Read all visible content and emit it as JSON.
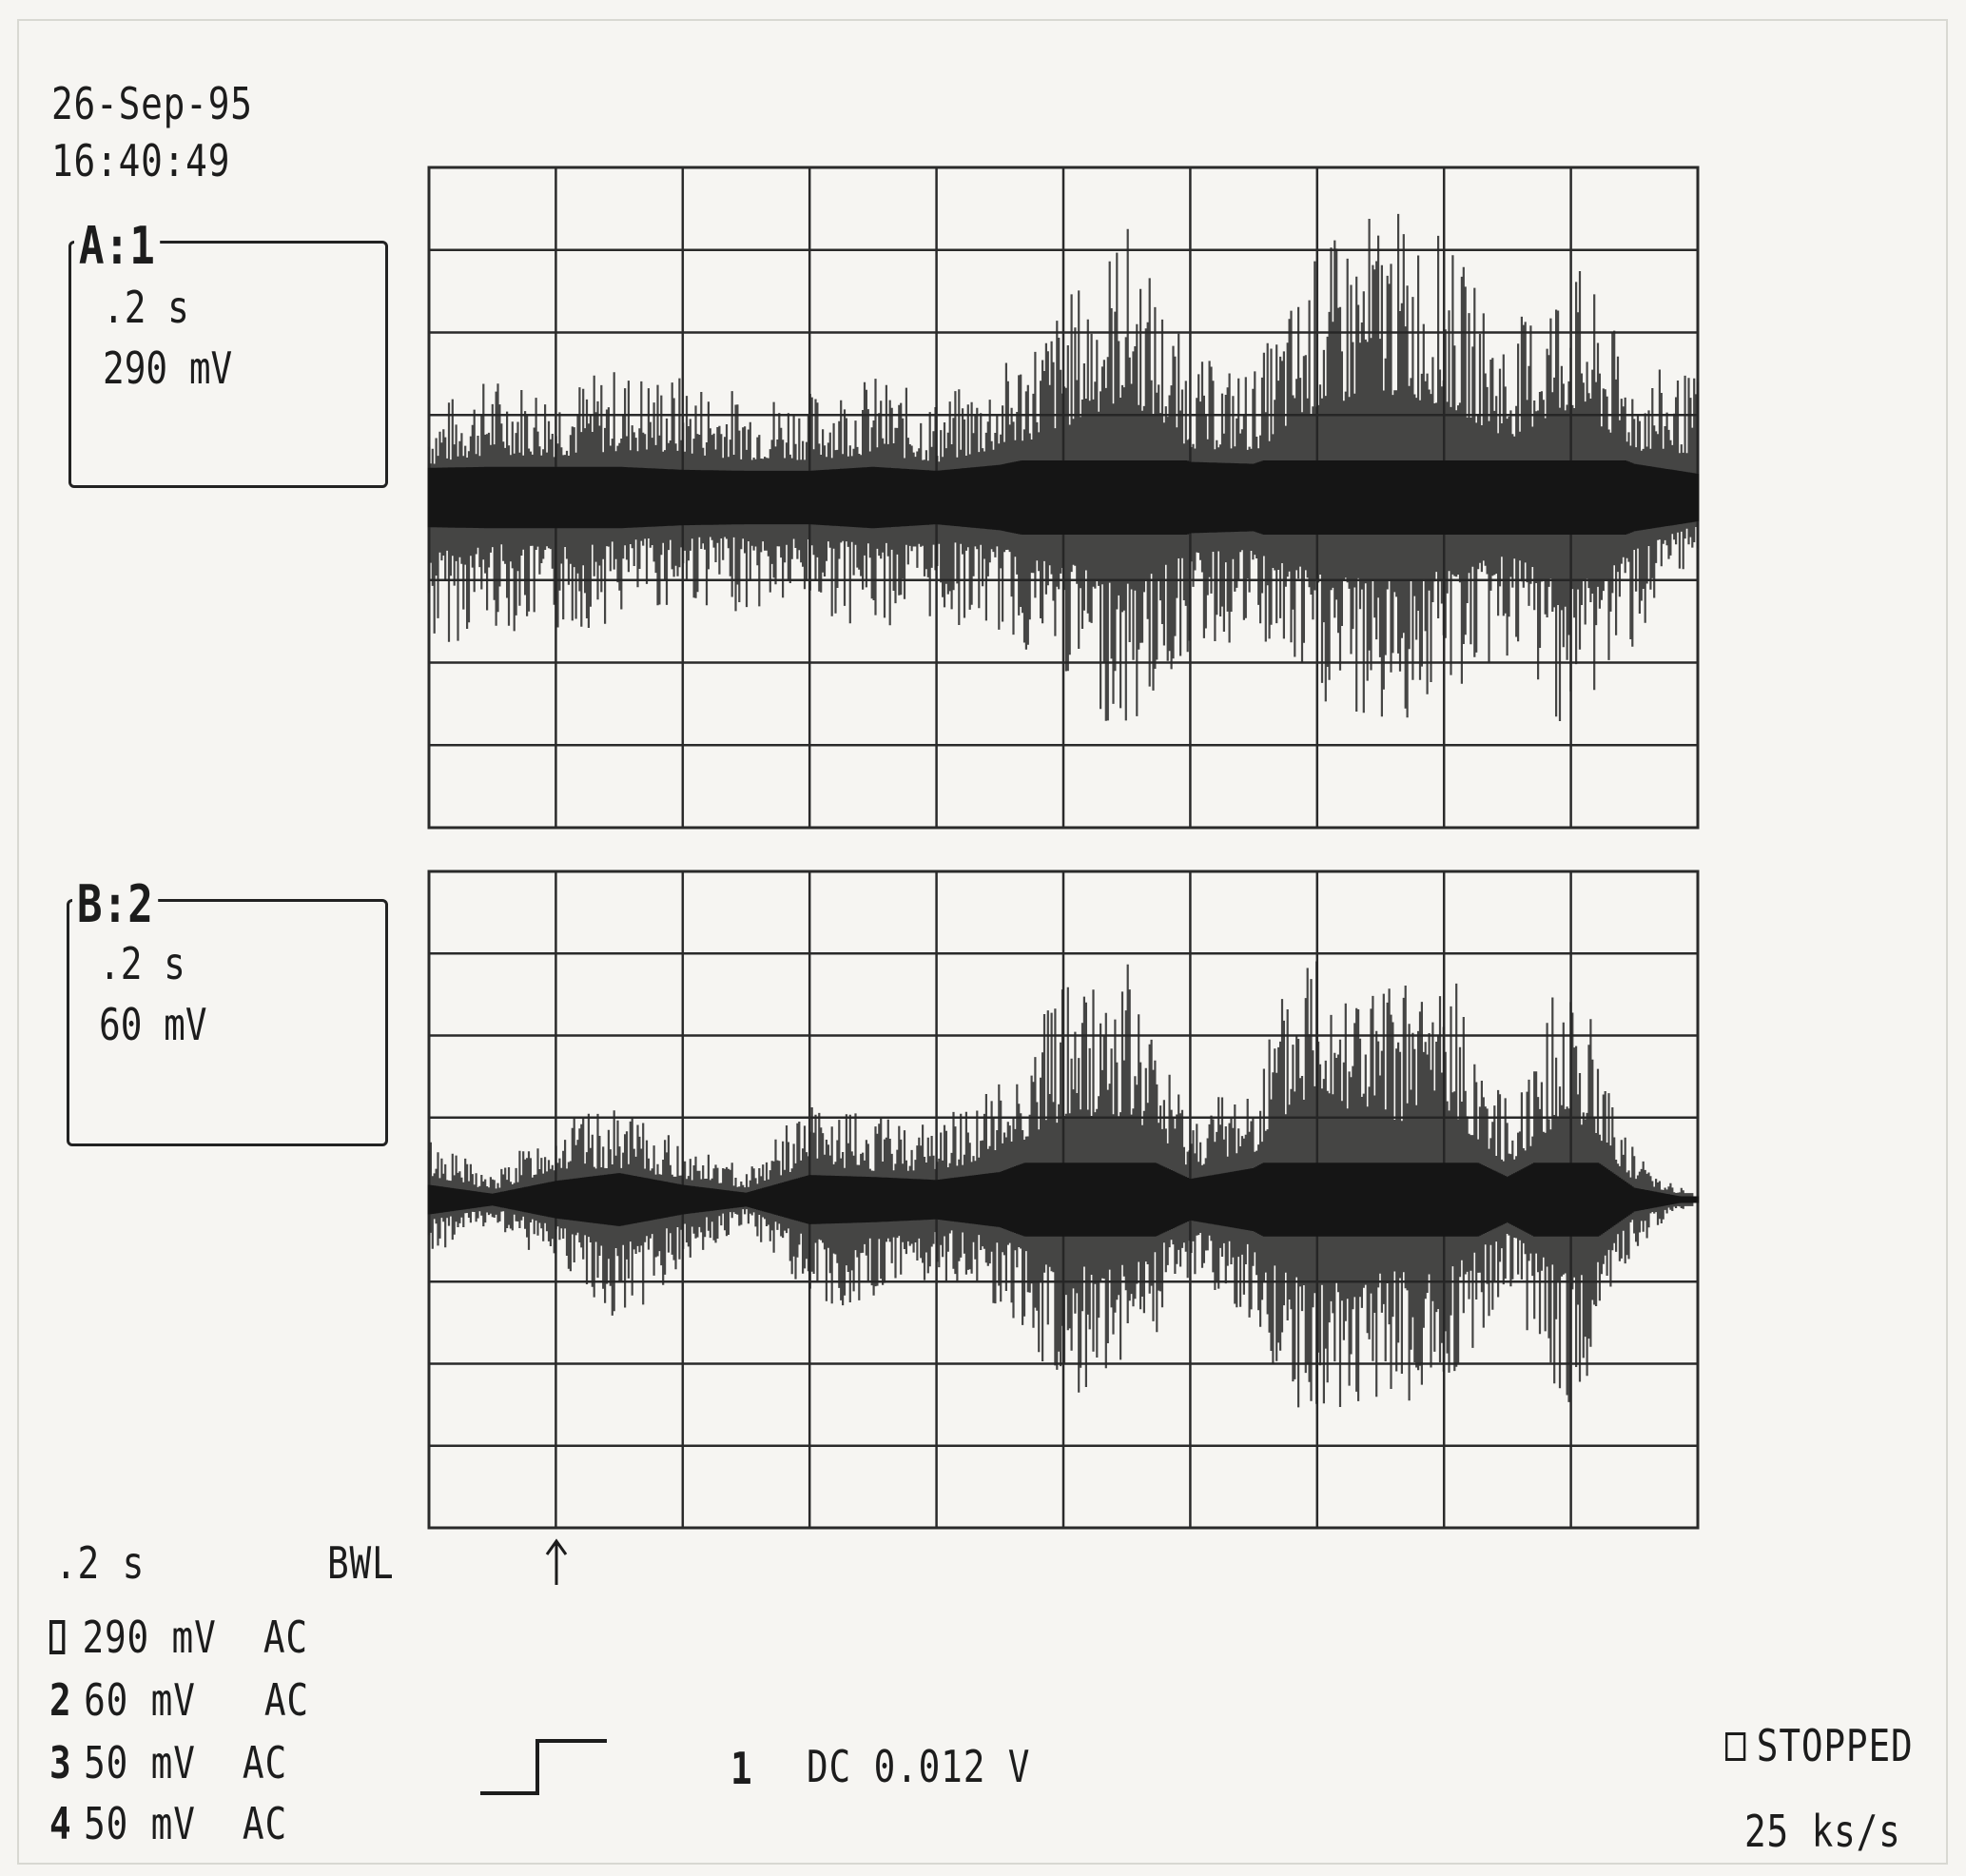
{
  "header": {
    "date": "26-Sep-95",
    "time": "16:40:49"
  },
  "channels": [
    {
      "label": "A:1",
      "timebase": ".2 s",
      "scale": "290 mV"
    },
    {
      "label": "B:2",
      "timebase": ".2 s",
      "scale": "60 mV"
    }
  ],
  "footer": {
    "timebase": ".2  s",
    "bwl": "BWL",
    "rows": [
      {
        "num": "1",
        "value": "290 mV",
        "coupling": "AC"
      },
      {
        "num": "2",
        "value": "60 mV",
        "coupling": "AC"
      },
      {
        "num": "3",
        "value": "50 mV",
        "coupling": "AC"
      },
      {
        "num": "4",
        "value": "50 mV",
        "coupling": "AC"
      }
    ],
    "trigger_channel": "1",
    "trigger_text": "DC 0.012 V",
    "status": "STOPPED",
    "sample_rate": "25 ks/s"
  },
  "chart_data": [
    {
      "type": "line",
      "description_channel": "A:1",
      "x_divisions": 10,
      "y_divisions": 8,
      "x_unit_per_div": 0.2,
      "y_unit_per_div_mV": 290,
      "x": [
        0,
        0.1,
        0.2,
        0.3,
        0.4,
        0.5,
        0.6,
        0.7,
        0.8,
        0.9,
        1.0,
        1.1,
        1.2,
        1.3,
        1.4,
        1.5,
        1.6,
        1.7,
        1.8,
        1.9,
        2.0
      ],
      "series": [
        {
          "upper_envelope_div": [
            1.1,
            1.5,
            1.4,
            1.6,
            1.5,
            1.3,
            1.3,
            1.5,
            1.2,
            1.6,
            2.4,
            3.4,
            1.7,
            1.6,
            3.0,
            3.6,
            3.2,
            2.0,
            3.0,
            1.6,
            1.5
          ]
        },
        {
          "lower_envelope_div": [
            -1.9,
            -1.6,
            -1.7,
            -1.5,
            -1.3,
            -1.4,
            -1.4,
            -1.6,
            -1.5,
            -1.7,
            -2.2,
            -3.0,
            -1.9,
            -1.8,
            -2.6,
            -2.9,
            -2.5,
            -2.0,
            -2.9,
            -1.8,
            -0.9
          ]
        }
      ]
    },
    {
      "type": "line",
      "description_channel": "B:2",
      "x_divisions": 10,
      "y_divisions": 8,
      "x_unit_per_div": 0.2,
      "y_unit_per_div_mV": 60,
      "x": [
        0,
        0.1,
        0.2,
        0.3,
        0.4,
        0.5,
        0.6,
        0.7,
        0.8,
        0.9,
        1.0,
        1.1,
        1.2,
        1.3,
        1.4,
        1.5,
        1.6,
        1.7,
        1.8,
        1.9,
        2.0
      ],
      "series": [
        {
          "upper_envelope_div": [
            0.8,
            0.3,
            1.0,
            1.1,
            0.7,
            0.4,
            1.2,
            1.0,
            1.0,
            1.5,
            2.8,
            2.9,
            1.1,
            1.6,
            3.7,
            2.6,
            3.0,
            1.2,
            3.0,
            0.6,
            0.0
          ]
        },
        {
          "lower_envelope_div": [
            -0.7,
            -0.3,
            -0.9,
            -1.6,
            -0.8,
            -0.3,
            -1.3,
            -1.3,
            -1.0,
            -1.3,
            -2.4,
            -2.2,
            -1.0,
            -1.6,
            -3.0,
            -2.5,
            -2.4,
            -1.1,
            -2.7,
            -0.6,
            0.0
          ]
        }
      ]
    }
  ]
}
